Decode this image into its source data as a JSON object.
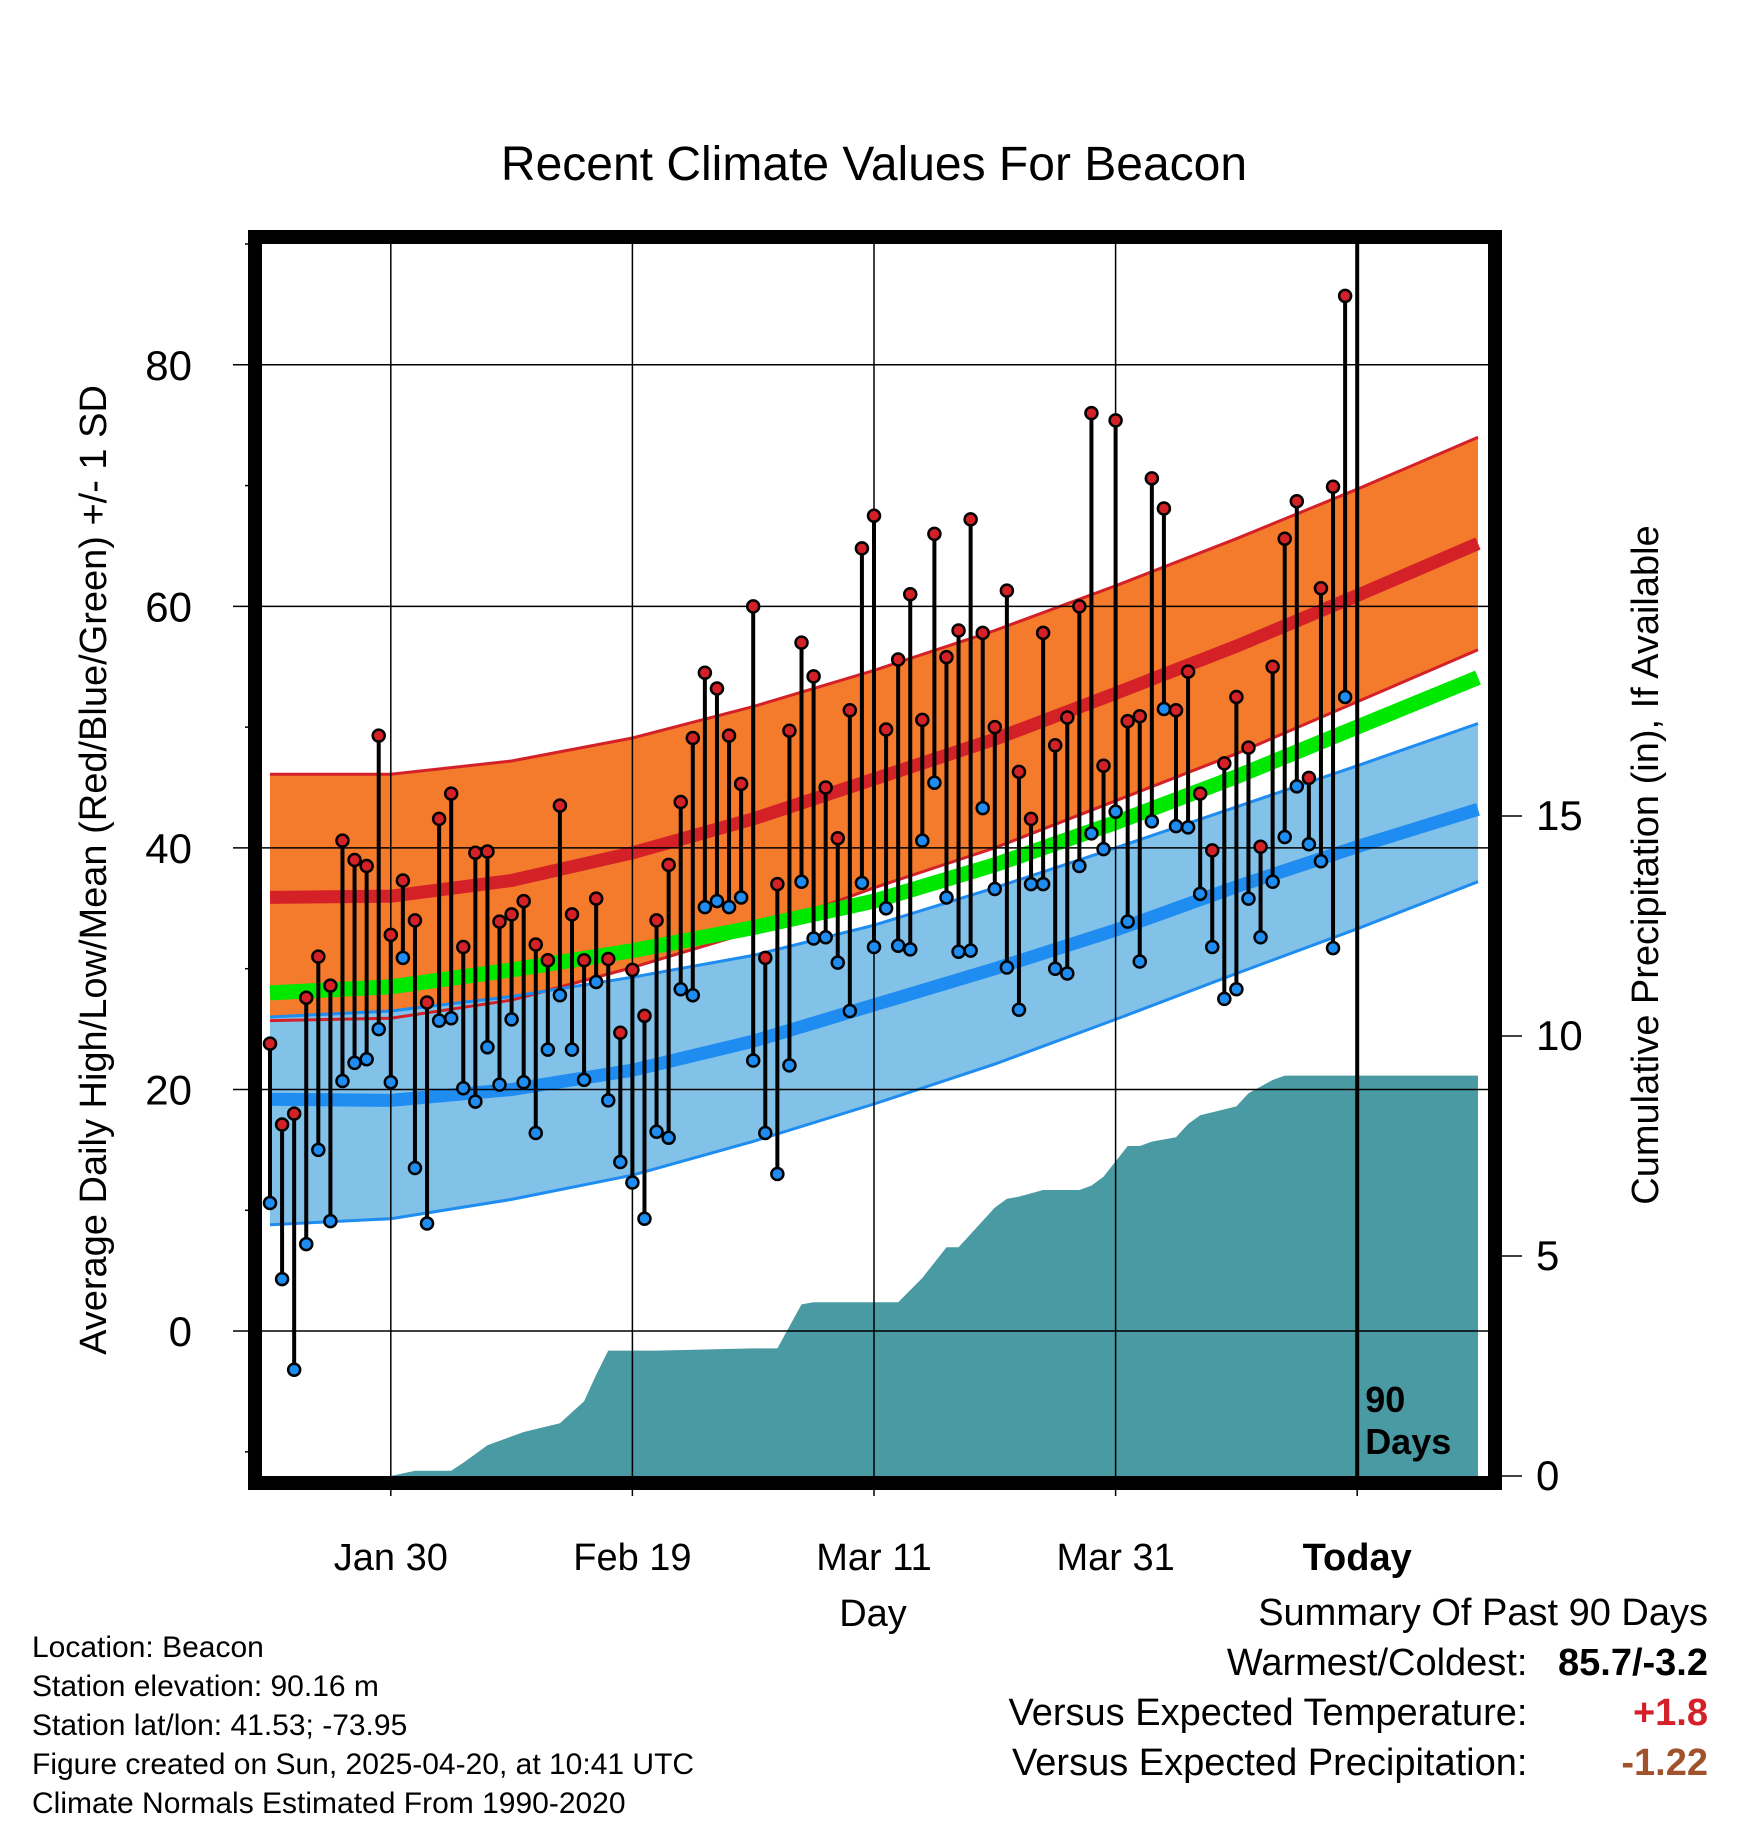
{
  "chart_data": {
    "type": "line",
    "title": "Recent Climate Values For Beacon",
    "xlabel": "Day",
    "ylabel": "Average Daily High/Low/Mean (Red/Blue/Green) +/- 1 SD",
    "y2label": "Cumulative Precipitation (in), If Available",
    "days_label": "90 Days",
    "x_domain": [
      0,
      100
    ],
    "ylim": [
      -12,
      90
    ],
    "y_ticks": [
      0,
      20,
      40,
      60,
      80
    ],
    "y2lim": [
      0,
      28
    ],
    "y2_ticks": [
      0,
      5,
      10,
      15
    ],
    "x_ticks": [
      {
        "label": "Jan 30",
        "x": 10
      },
      {
        "label": "Feb 19",
        "x": 30
      },
      {
        "label": "Mar 11",
        "x": 50
      },
      {
        "label": "Mar 31",
        "x": 70
      },
      {
        "label": "Today",
        "x": 90
      }
    ],
    "grid": true,
    "colors": {
      "high_band": "#f47a2c",
      "high_mean": "#d42128",
      "band_edge": "#d42128",
      "mean_line": "#00e800",
      "low_band": "#82c1e8",
      "low_mean": "#1e8cf0",
      "low_edge": "#1e8cf0",
      "precip": "#4a9aa4",
      "dot_high": "#d42128",
      "dot_low": "#1e8cf0"
    },
    "normals": {
      "x": [
        0,
        10,
        20,
        30,
        40,
        50,
        60,
        70,
        80,
        90,
        100
      ],
      "high_upper": [
        46.1,
        46.1,
        47.2,
        49.1,
        51.7,
        54.7,
        58.0,
        61.7,
        65.6,
        69.7,
        74.0
      ],
      "high_mean": [
        35.9,
        36.0,
        37.3,
        39.6,
        42.4,
        45.7,
        49.0,
        52.8,
        56.7,
        60.9,
        65.2
      ],
      "high_lower": [
        25.7,
        25.9,
        27.4,
        30.1,
        33.1,
        36.7,
        40.0,
        43.9,
        47.8,
        52.1,
        56.4
      ],
      "mean": [
        28.0,
        28.5,
        29.9,
        31.5,
        33.4,
        35.6,
        38.6,
        42.1,
        45.9,
        50.0,
        54.1
      ],
      "low_upper": [
        26.0,
        26.5,
        27.7,
        29.3,
        31.1,
        33.6,
        36.7,
        40.0,
        43.4,
        46.8,
        50.3
      ],
      "low_mean": [
        19.2,
        19.1,
        20.0,
        21.6,
        24.0,
        27.0,
        30.0,
        33.2,
        36.8,
        40.1,
        43.2
      ],
      "low_lower": [
        8.8,
        9.3,
        10.9,
        12.9,
        15.7,
        18.8,
        22.1,
        25.8,
        29.6,
        33.3,
        37.2
      ]
    },
    "series": [
      {
        "name": "High",
        "values": [
          23.8,
          17.1,
          18.0,
          27.6,
          31.0,
          28.6,
          40.6,
          39.0,
          38.5,
          49.3,
          32.8,
          37.3,
          34.0,
          27.2,
          42.4,
          44.5,
          31.8,
          39.6,
          39.7,
          33.9,
          34.5,
          35.6,
          32.0,
          30.7,
          43.5,
          34.5,
          30.7,
          35.8,
          30.8,
          24.7,
          29.9,
          26.1,
          34.0,
          38.6,
          43.8,
          49.1,
          54.5,
          53.2,
          49.3,
          45.3,
          60.0,
          30.9,
          37.0,
          49.7,
          57.0,
          54.2,
          45.0,
          40.8,
          51.4,
          64.8,
          67.5,
          49.8,
          55.6,
          61.0,
          50.6,
          66.0,
          55.8,
          58.0,
          67.2,
          57.8,
          50.0,
          61.3,
          46.3,
          42.4,
          57.8,
          48.5,
          50.8,
          60.0,
          76.0,
          46.8,
          75.4,
          50.5,
          50.9,
          70.6,
          68.1,
          51.4,
          54.6,
          44.5,
          39.8,
          47.0,
          52.5,
          48.3,
          40.1,
          55.0,
          65.6,
          68.7,
          45.8,
          61.5,
          69.9,
          85.7
        ]
      },
      {
        "name": "Low",
        "values": [
          10.6,
          4.3,
          -3.2,
          7.2,
          15.0,
          9.1,
          20.7,
          22.2,
          22.5,
          25.0,
          20.6,
          30.9,
          13.5,
          8.9,
          25.7,
          25.9,
          20.1,
          19.0,
          23.5,
          20.4,
          25.8,
          20.6,
          16.4,
          23.3,
          27.8,
          23.3,
          20.8,
          28.9,
          19.1,
          14.0,
          12.3,
          9.3,
          16.5,
          16.0,
          28.3,
          27.8,
          35.1,
          35.6,
          35.1,
          35.9,
          22.4,
          16.4,
          13.0,
          22.0,
          37.2,
          32.5,
          32.6,
          30.5,
          26.5,
          37.1,
          31.8,
          35.0,
          31.9,
          31.6,
          40.6,
          45.4,
          35.9,
          31.4,
          31.5,
          43.3,
          36.6,
          30.1,
          26.6,
          37.0,
          37.0,
          30.0,
          29.6,
          38.5,
          41.2,
          39.9,
          43.0,
          33.9,
          30.6,
          42.2,
          51.5,
          41.8,
          41.7,
          36.2,
          31.8,
          27.5,
          28.3,
          35.8,
          32.6,
          37.2,
          40.9,
          45.1,
          40.3,
          38.9,
          31.7,
          52.5
        ]
      }
    ],
    "precip": {
      "x": [
        10,
        11,
        12,
        15,
        16,
        17,
        18,
        20,
        21,
        24,
        26,
        27,
        28,
        32,
        40,
        42,
        44,
        45,
        47,
        52,
        54,
        56,
        57,
        60,
        61,
        62,
        64,
        67,
        68,
        69,
        71,
        72,
        73,
        75,
        76,
        77,
        80,
        81,
        83,
        84,
        90,
        100
      ],
      "cum": [
        0.0,
        0.06,
        0.12,
        0.12,
        0.3,
        0.5,
        0.7,
        0.9,
        1.0,
        1.2,
        1.7,
        2.3,
        2.85,
        2.85,
        2.9,
        2.9,
        3.9,
        3.95,
        3.95,
        3.95,
        4.5,
        5.2,
        5.2,
        6.1,
        6.3,
        6.35,
        6.5,
        6.5,
        6.6,
        6.8,
        7.5,
        7.5,
        7.6,
        7.7,
        8.0,
        8.2,
        8.4,
        8.7,
        9.0,
        9.1,
        9.1,
        9.1
      ]
    }
  },
  "info": {
    "location": "Location: Beacon",
    "elevation": "Station elevation: 90.16 m",
    "latlon": "Station lat/lon: 41.53; -73.95",
    "created": "Figure created on Sun, 2025-04-20, at 10:41 UTC",
    "normals": "Climate Normals Estimated From 1990-2020"
  },
  "summary": {
    "heading": "Summary Of Past 90 Days",
    "warmest_coldest_label": "Warmest/Coldest:",
    "warmest_coldest_value": "85.7/-3.2",
    "temp_label": "Versus Expected Temperature:",
    "temp_value": "+1.8",
    "temp_color": "#d42128",
    "precip_label": "Versus Expected Precipitation:",
    "precip_value": "-1.22",
    "precip_color": "#a0522d"
  }
}
